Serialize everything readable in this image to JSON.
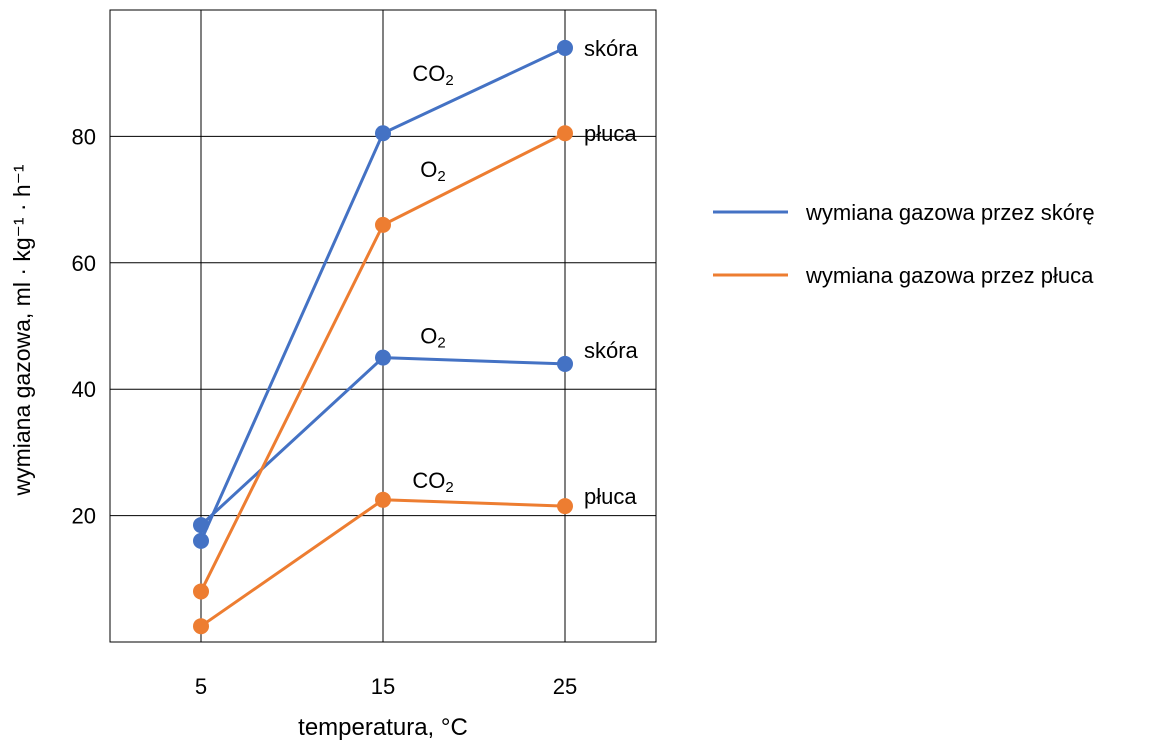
{
  "chart_data": {
    "type": "line",
    "xlabel": "temperatura, °C",
    "ylabel": "wymiana gazowa, ml · kg⁻¹ · h⁻¹",
    "x": [
      5,
      15,
      25
    ],
    "xlim": [
      0,
      30
    ],
    "ylim": [
      0,
      100
    ],
    "x_ticks": [
      "5",
      "15",
      "25"
    ],
    "y_ticks": [
      "20",
      "40",
      "60",
      "80"
    ],
    "grid": true,
    "legend_position": "right",
    "legend": [
      {
        "label": "wymiana gazowa przez skórę",
        "color": "#4472C4"
      },
      {
        "label": "wymiana gazowa przez płuca",
        "color": "#ED7D31"
      }
    ],
    "series": [
      {
        "gas_label": "CO",
        "gas_sub": "2",
        "end_label": "skóra",
        "color": "#4472C4",
        "values": [
          16,
          80.5,
          94
        ]
      },
      {
        "gas_label": "O",
        "gas_sub": "2",
        "end_label": "skóra",
        "color": "#4472C4",
        "values": [
          18.5,
          45,
          44
        ]
      },
      {
        "gas_label": "O",
        "gas_sub": "2",
        "end_label": "płuca",
        "color": "#ED7D31",
        "values": [
          8,
          66,
          80.5
        ]
      },
      {
        "gas_label": "CO",
        "gas_sub": "2",
        "end_label": "płuca",
        "color": "#ED7D31",
        "values": [
          2.5,
          22.5,
          21.5
        ]
      }
    ]
  }
}
